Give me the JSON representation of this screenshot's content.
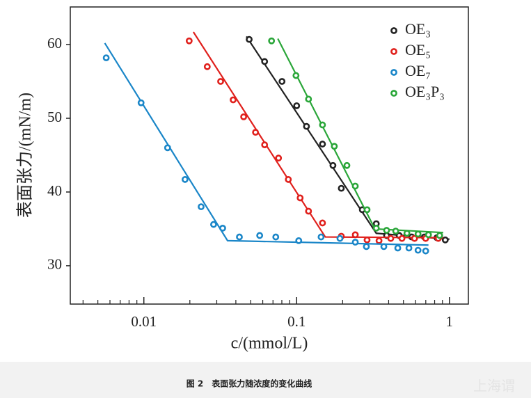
{
  "chart_data": {
    "type": "scatter",
    "xlabel": "c/(mmol/L)",
    "ylabel": "表面张力/(mN/m)",
    "xscale": "log",
    "xlim": [
      0.0033,
      1.33
    ],
    "ylim": [
      24.8,
      65.1
    ],
    "xticks": [
      0.01,
      0.1,
      1
    ],
    "xminorticks": [
      0.004,
      0.005,
      0.006,
      0.007,
      0.008,
      0.009,
      0.02,
      0.03,
      0.04,
      0.05,
      0.06,
      0.07,
      0.08,
      0.09,
      0.2,
      0.3,
      0.4,
      0.5,
      0.6,
      0.7,
      0.8,
      0.9
    ],
    "yticks": [
      30,
      40,
      50,
      60
    ],
    "legend": "upper right",
    "series": [
      {
        "name": "OE₃",
        "color": "#222222",
        "x": [
          0.0489,
          0.0617,
          0.0802,
          0.1,
          0.116,
          0.1476,
          0.1728,
          0.196,
          0.269,
          0.332,
          0.388,
          0.469,
          0.566,
          0.685,
          0.828,
          0.939
        ],
        "values": [
          60.7,
          57.7,
          55.0,
          51.7,
          48.9,
          46.5,
          43.6,
          40.5,
          37.6,
          35.7,
          34.1,
          34.1,
          33.9,
          33.9,
          33.8,
          33.5
        ],
        "fit_x": [
          0.0469,
          0.332,
          1.0
        ],
        "fit_values": [
          61.1,
          34.4,
          33.6
        ]
      },
      {
        "name": "OE₅",
        "color": "#e0201c",
        "x": [
          0.0198,
          0.026,
          0.0318,
          0.0384,
          0.045,
          0.0538,
          0.0617,
          0.0761,
          0.0882,
          0.1054,
          0.1196,
          0.1476,
          0.196,
          0.242,
          0.289,
          0.346,
          0.413,
          0.489,
          0.591,
          0.699,
          0.845
        ],
        "values": [
          60.5,
          57.0,
          55.0,
          52.5,
          50.2,
          48.1,
          46.4,
          44.6,
          41.7,
          39.2,
          37.4,
          35.8,
          34.0,
          34.2,
          33.5,
          33.4,
          33.7,
          33.7,
          33.7,
          33.7,
          33.7
        ],
        "fit_x": [
          0.0211,
          0.154,
          0.91
        ],
        "fit_values": [
          61.7,
          33.9,
          33.8
        ]
      },
      {
        "name": "OE₇",
        "color": "#1a86c8",
        "x": [
          0.00567,
          0.00959,
          0.0143,
          0.0186,
          0.0237,
          0.0286,
          0.0328,
          0.0422,
          0.0573,
          0.073,
          0.1032,
          0.1445,
          0.192,
          0.242,
          0.286,
          0.372,
          0.459,
          0.543,
          0.623,
          0.699
        ],
        "values": [
          58.2,
          52.1,
          46.0,
          41.7,
          38.0,
          35.6,
          35.1,
          33.9,
          34.1,
          33.9,
          33.4,
          33.9,
          33.7,
          33.2,
          32.6,
          32.6,
          32.4,
          32.4,
          32.1,
          32.0
        ],
        "fit_x": [
          0.00555,
          0.0353,
          0.729
        ],
        "fit_values": [
          60.2,
          33.4,
          32.8
        ]
      },
      {
        "name": "OE₃P₃",
        "color": "#2aa639",
        "x": [
          0.0685,
          0.099,
          0.1196,
          0.1476,
          0.1764,
          0.2133,
          0.242,
          0.289,
          0.332,
          0.388,
          0.445,
          0.527,
          0.623,
          0.729,
          0.863
        ],
        "values": [
          60.5,
          55.8,
          52.6,
          49.1,
          46.2,
          43.6,
          40.8,
          37.6,
          35.1,
          34.8,
          34.7,
          34.4,
          34.3,
          34.2,
          34.1
        ],
        "fit_x": [
          0.0753,
          0.325,
          0.91
        ],
        "fit_values": [
          60.8,
          35.0,
          34.5
        ]
      }
    ]
  },
  "caption": "图 2　表面张力随浓度的变化曲线",
  "watermark": "上海谓"
}
